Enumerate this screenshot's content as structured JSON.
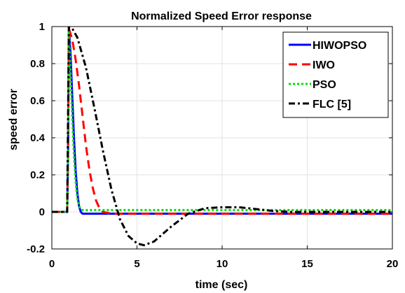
{
  "chart_data": {
    "type": "line",
    "title": "Normalized Speed Error response",
    "xlabel": "time (sec)",
    "ylabel": "speed error",
    "xlim": [
      0,
      20
    ],
    "ylim": [
      -0.2,
      1
    ],
    "xticks": [
      0,
      5,
      10,
      15,
      20
    ],
    "yticks": [
      -0.2,
      0,
      0.2,
      0.4,
      0.6,
      0.8,
      1
    ],
    "xtick_labels": [
      "0",
      "5",
      "10",
      "15",
      "20"
    ],
    "ytick_labels": [
      "-0.2",
      "0",
      "0.2",
      "0.4",
      "0.6",
      "0.8",
      "1"
    ],
    "grid": true,
    "legend_position": "top-right",
    "series": [
      {
        "name": "HIWOPSO",
        "color": "#0000ff",
        "line_style": "solid",
        "x": [
          0,
          0.9,
          0.95,
          1.0,
          1.1,
          1.2,
          1.3,
          1.4,
          1.5,
          1.6,
          1.7,
          1.8,
          2.0,
          2.5,
          20
        ],
        "y": [
          0,
          0,
          0.3,
          1.0,
          0.85,
          0.62,
          0.4,
          0.22,
          0.1,
          0.03,
          0.0,
          -0.01,
          -0.01,
          -0.01,
          -0.01
        ]
      },
      {
        "name": "IWO",
        "color": "#ff0000",
        "line_style": "dashed",
        "x": [
          0,
          0.9,
          0.95,
          1.0,
          1.2,
          1.4,
          1.6,
          1.8,
          2.0,
          2.2,
          2.4,
          2.6,
          2.8,
          3.0,
          3.5,
          20
        ],
        "y": [
          0,
          0,
          0.3,
          0.99,
          0.93,
          0.82,
          0.68,
          0.52,
          0.36,
          0.23,
          0.13,
          0.06,
          0.02,
          0.0,
          -0.01,
          -0.01
        ]
      },
      {
        "name": "PSO",
        "color": "#00e000",
        "line_style": "dotted",
        "x": [
          0,
          0.9,
          0.95,
          1.0,
          1.1,
          1.2,
          1.3,
          1.4,
          1.5,
          1.6,
          1.7,
          1.8,
          20
        ],
        "y": [
          0,
          0,
          0.3,
          0.98,
          0.75,
          0.5,
          0.3,
          0.16,
          0.07,
          0.03,
          0.015,
          0.01,
          0.01
        ]
      },
      {
        "name": "FLC [5]",
        "color": "#000000",
        "line_style": "dashdot",
        "x": [
          0,
          0.9,
          0.95,
          1.0,
          1.2,
          1.5,
          2.0,
          2.5,
          3.0,
          3.5,
          4.0,
          4.5,
          5.0,
          5.4,
          6.0,
          7.0,
          8.0,
          9.0,
          10.0,
          11.0,
          12.0,
          13.0,
          14.0,
          15.0,
          16.0,
          20.0
        ],
        "y": [
          0,
          0,
          0.5,
          1.0,
          0.99,
          0.94,
          0.78,
          0.56,
          0.33,
          0.12,
          -0.04,
          -0.13,
          -0.17,
          -0.18,
          -0.16,
          -0.08,
          -0.01,
          0.02,
          0.025,
          0.025,
          0.015,
          0.005,
          0.0,
          0.0,
          0.0,
          0.0
        ]
      }
    ]
  }
}
